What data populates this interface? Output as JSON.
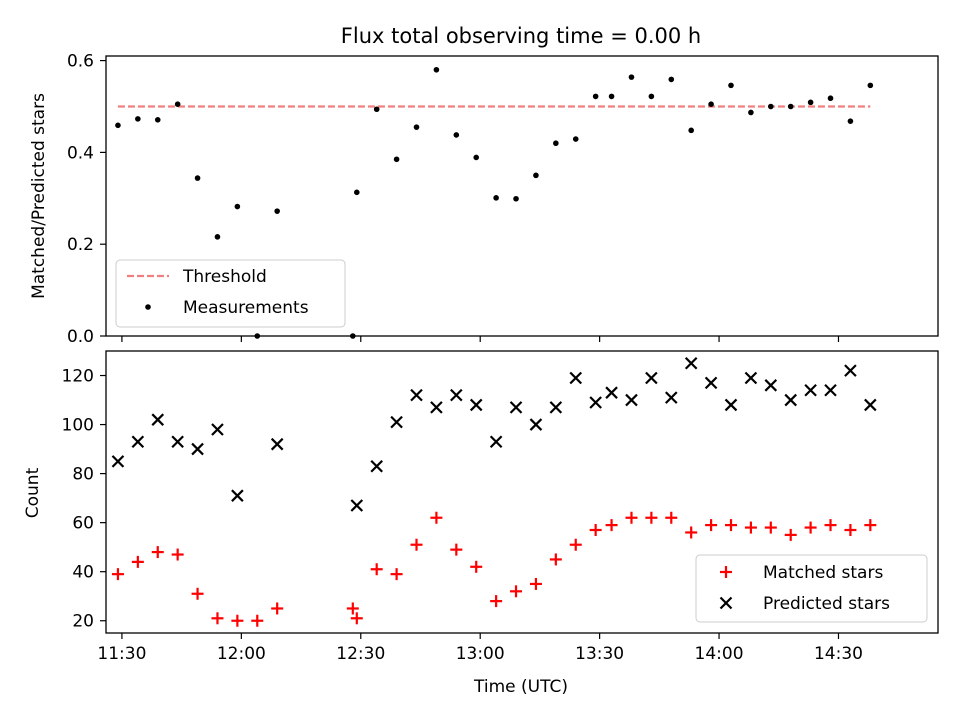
{
  "chart_data": [
    {
      "type": "scatter",
      "title": "Flux total observing time = 0.00 h",
      "xlabel": "",
      "ylabel": "Matched/Predicted stars",
      "xlim": [
        "11:26",
        "14:55"
      ],
      "ylim": [
        0,
        0.61
      ],
      "yticks": [
        "0.0",
        "0.2",
        "0.4",
        "0.6"
      ],
      "x_ticks_shown": false,
      "grid": false,
      "legend_position": "lower left",
      "threshold": {
        "name": "Threshold",
        "value": 0.5,
        "x_start": "11:29",
        "x_end": "14:38",
        "color": "#f08080",
        "style": "dashed"
      },
      "series": [
        {
          "name": "Measurements",
          "color": "#000000",
          "marker": "dot",
          "x": [
            "11:29",
            "11:34",
            "11:39",
            "11:44",
            "11:49",
            "11:54",
            "11:59",
            "12:04",
            "12:09",
            "12:28",
            "12:29",
            "12:34",
            "12:39",
            "12:44",
            "12:49",
            "12:54",
            "12:59",
            "13:04",
            "13:09",
            "13:14",
            "13:19",
            "13:24",
            "13:29",
            "13:33",
            "13:38",
            "13:43",
            "13:48",
            "13:53",
            "13:58",
            "14:03",
            "14:08",
            "14:13",
            "14:18",
            "14:23",
            "14:28",
            "14:33",
            "14:38"
          ],
          "values": [
            0.459,
            0.473,
            0.471,
            0.505,
            0.344,
            0.216,
            0.282,
            0.0,
            0.272,
            0.0,
            0.313,
            0.494,
            0.385,
            0.455,
            0.58,
            0.438,
            0.389,
            0.301,
            0.299,
            0.35,
            0.42,
            0.429,
            0.522,
            0.522,
            0.564,
            0.522,
            0.559,
            0.448,
            0.505,
            0.546,
            0.487,
            0.5,
            0.5,
            0.509,
            0.518,
            0.468,
            0.546
          ]
        }
      ]
    },
    {
      "type": "scatter",
      "title": "",
      "xlabel": "Time (UTC)",
      "ylabel": "Count",
      "xlim": [
        "11:26",
        "14:55"
      ],
      "ylim": [
        15,
        130
      ],
      "xticks": [
        "11:30",
        "12:00",
        "12:30",
        "13:00",
        "13:30",
        "14:00",
        "14:30"
      ],
      "yticks": [
        "20",
        "40",
        "60",
        "80",
        "100",
        "120"
      ],
      "grid": false,
      "legend_position": "lower right",
      "series": [
        {
          "name": "Matched stars",
          "color": "#ff0000",
          "marker": "plus",
          "x": [
            "11:29",
            "11:34",
            "11:39",
            "11:44",
            "11:49",
            "11:54",
            "11:59",
            "12:04",
            "12:09",
            "12:28",
            "12:29",
            "12:34",
            "12:39",
            "12:44",
            "12:49",
            "12:54",
            "12:59",
            "13:04",
            "13:09",
            "13:14",
            "13:19",
            "13:24",
            "13:29",
            "13:33",
            "13:38",
            "13:43",
            "13:48",
            "13:53",
            "13:58",
            "14:03",
            "14:08",
            "14:13",
            "14:18",
            "14:23",
            "14:28",
            "14:33",
            "14:38"
          ],
          "values": [
            39,
            44,
            48,
            47,
            31,
            21,
            20,
            20,
            25,
            25,
            21,
            41,
            39,
            51,
            62,
            49,
            42,
            28,
            32,
            35,
            45,
            51,
            57,
            59,
            62,
            62,
            62,
            56,
            59,
            59,
            58,
            58,
            55,
            58,
            59,
            57,
            59
          ]
        },
        {
          "name": "Predicted stars",
          "color": "#000000",
          "marker": "x",
          "x": [
            "11:29",
            "11:34",
            "11:39",
            "11:44",
            "11:49",
            "11:54",
            "11:59",
            "12:09",
            "12:29",
            "12:34",
            "12:39",
            "12:44",
            "12:49",
            "12:54",
            "12:59",
            "13:04",
            "13:09",
            "13:14",
            "13:19",
            "13:24",
            "13:29",
            "13:33",
            "13:38",
            "13:43",
            "13:48",
            "13:53",
            "13:58",
            "14:03",
            "14:08",
            "14:13",
            "14:18",
            "14:23",
            "14:28",
            "14:33",
            "14:38"
          ],
          "values": [
            85,
            93,
            102,
            93,
            90,
            98,
            71,
            92,
            67,
            83,
            101,
            112,
            107,
            112,
            108,
            93,
            107,
            100,
            107,
            119,
            109,
            113,
            110,
            119,
            111,
            125,
            117,
            108,
            119,
            116,
            110,
            114,
            114,
            122,
            108
          ]
        }
      ]
    }
  ]
}
